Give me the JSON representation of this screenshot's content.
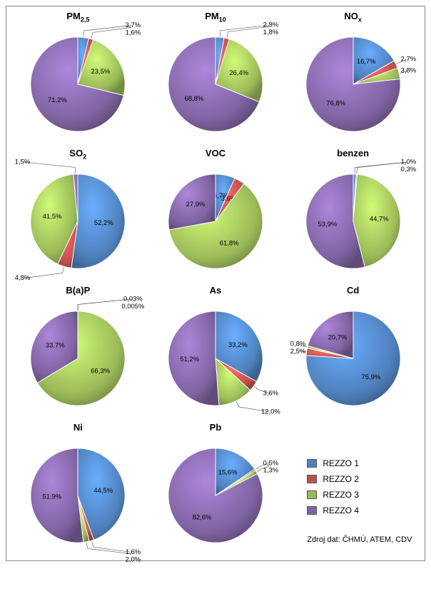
{
  "colors": {
    "rezzo1": "#4f81bd",
    "rezzo2": "#c0504d",
    "rezzo3": "#9bbb59",
    "rezzo4": "#8064a2",
    "stroke": "#ffffff",
    "label": "#000000"
  },
  "legend": {
    "items": [
      {
        "label": "REZZO 1",
        "key": "rezzo1"
      },
      {
        "label": "REZZO 2",
        "key": "rezzo2"
      },
      {
        "label": "REZZO 3",
        "key": "rezzo3"
      },
      {
        "label": "REZZO 4",
        "key": "rezzo4"
      }
    ],
    "source": "Zdroj dat: ČHMÚ, ATEM, CDV"
  },
  "layout": {
    "pie_radius": 70,
    "label_radius": 88,
    "start_angle": -90,
    "cols": 3,
    "label_fontsize": 10,
    "title_fontsize": 13
  },
  "charts": [
    {
      "title": "PM<sub>2,5</sub>",
      "slices": [
        {
          "key": "rezzo1",
          "value": 3.7,
          "label": "3,7%",
          "outside": true
        },
        {
          "key": "rezzo2",
          "value": 1.6,
          "label": "1,6%",
          "outside": true
        },
        {
          "key": "rezzo3",
          "value": 23.5,
          "label": "23,5%",
          "outside": false
        },
        {
          "key": "rezzo4",
          "value": 71.2,
          "label": "71,2%",
          "outside": false
        }
      ]
    },
    {
      "title": "PM<sub>10</sub>",
      "slices": [
        {
          "key": "rezzo1",
          "value": 2.9,
          "label": "2,9%",
          "outside": true
        },
        {
          "key": "rezzo2",
          "value": 1.8,
          "label": "1,8%",
          "outside": true
        },
        {
          "key": "rezzo3",
          "value": 26.4,
          "label": "26,4%",
          "outside": false
        },
        {
          "key": "rezzo4",
          "value": 68.8,
          "label": "68,8%",
          "outside": false
        }
      ]
    },
    {
      "title": "NO<sub>x</sub>",
      "slices": [
        {
          "key": "rezzo1",
          "value": 16.7,
          "label": "16,7%",
          "outside": false
        },
        {
          "key": "rezzo2",
          "value": 2.7,
          "label": "2,7%",
          "outside": true
        },
        {
          "key": "rezzo3",
          "value": 3.8,
          "label": "3,8%",
          "outside": true
        },
        {
          "key": "rezzo4",
          "value": 76.8,
          "label": "76,8%",
          "outside": false
        }
      ]
    },
    {
      "title": "SO<sub>2</sub>",
      "slices": [
        {
          "key": "rezzo1",
          "value": 52.2,
          "label": "52,2%",
          "outside": false
        },
        {
          "key": "rezzo2",
          "value": 4.8,
          "label": "4,8%",
          "outside": true
        },
        {
          "key": "rezzo3",
          "value": 41.5,
          "label": "41,5%",
          "outside": false
        },
        {
          "key": "rezzo4",
          "value": 1.5,
          "label": "1,5%",
          "outside": true
        }
      ]
    },
    {
      "title": "VOC",
      "slices": [
        {
          "key": "rezzo1",
          "value": 6.7,
          "label": "6,7%",
          "outside": false
        },
        {
          "key": "rezzo2",
          "value": 3.6,
          "label": "3,6%",
          "outside": false
        },
        {
          "key": "rezzo3",
          "value": 61.8,
          "label": "61,8%",
          "outside": false
        },
        {
          "key": "rezzo4",
          "value": 27.9,
          "label": "27,9%",
          "outside": false
        }
      ]
    },
    {
      "title": "benzen",
      "slices": [
        {
          "key": "rezzo1",
          "value": 1.0,
          "label": "1,0%",
          "outside": true
        },
        {
          "key": "rezzo2",
          "value": 0.3,
          "label": "0,3%",
          "outside": true
        },
        {
          "key": "rezzo3",
          "value": 44.7,
          "label": "44,7%",
          "outside": false
        },
        {
          "key": "rezzo4",
          "value": 53.9,
          "label": "53,9%",
          "outside": false
        }
      ]
    },
    {
      "title": "B(a)P",
      "slices": [
        {
          "key": "rezzo1",
          "value": 0.03,
          "label": "0,03%",
          "outside": true
        },
        {
          "key": "rezzo2",
          "value": 0.005,
          "label": "0,005%",
          "outside": true
        },
        {
          "key": "rezzo3",
          "value": 66.3,
          "label": "66,3%",
          "outside": false
        },
        {
          "key": "rezzo4",
          "value": 33.7,
          "label": "33,7%",
          "outside": false
        }
      ]
    },
    {
      "title": "As",
      "slices": [
        {
          "key": "rezzo1",
          "value": 33.2,
          "label": "33,2%",
          "outside": false
        },
        {
          "key": "rezzo2",
          "value": 3.6,
          "label": "3,6%",
          "outside": true
        },
        {
          "key": "rezzo3",
          "value": 12.0,
          "label": "12,0%",
          "outside": true
        },
        {
          "key": "rezzo4",
          "value": 51.2,
          "label": "51,2%",
          "outside": false
        }
      ]
    },
    {
      "title": "Cd",
      "slices": [
        {
          "key": "rezzo1",
          "value": 75.9,
          "label": "75,9%",
          "outside": false
        },
        {
          "key": "rezzo2",
          "value": 2.5,
          "label": "2,5%",
          "outside": true
        },
        {
          "key": "rezzo3",
          "value": 0.8,
          "label": "0,8%",
          "outside": true
        },
        {
          "key": "rezzo4",
          "value": 20.7,
          "label": "20,7%",
          "outside": false
        }
      ]
    },
    {
      "title": "Ni",
      "slices": [
        {
          "key": "rezzo1",
          "value": 44.5,
          "label": "44,5%",
          "outside": false
        },
        {
          "key": "rezzo2",
          "value": 1.6,
          "label": "1,6%",
          "outside": true
        },
        {
          "key": "rezzo3",
          "value": 2.0,
          "label": "2,0%",
          "outside": true
        },
        {
          "key": "rezzo4",
          "value": 51.9,
          "label": "51,9%",
          "outside": false
        }
      ]
    },
    {
      "title": "Pb",
      "slices": [
        {
          "key": "rezzo1",
          "value": 15.6,
          "label": "15,6%",
          "outside": false
        },
        {
          "key": "rezzo2",
          "value": 0.5,
          "label": "0,5%",
          "outside": true
        },
        {
          "key": "rezzo3",
          "value": 1.3,
          "label": "1,3%",
          "outside": true
        },
        {
          "key": "rezzo4",
          "value": 82.6,
          "label": "82,6%",
          "outside": false
        }
      ]
    }
  ]
}
